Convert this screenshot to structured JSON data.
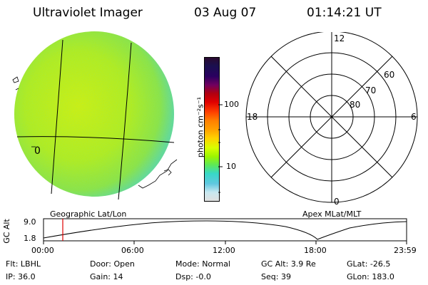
{
  "header": {
    "title": "Ultraviolet Imager",
    "date": "03 Aug 07",
    "time": "01:14:21 UT"
  },
  "geo_panel": {
    "label": "Geographic Lat/Lon",
    "lon_label": "0"
  },
  "colorbar": {
    "unit_label": "photon cm⁻²s⁻¹",
    "ticks": [
      "100",
      "10"
    ],
    "colors": [
      "#2a0a30",
      "#1a1050",
      "#2a0060",
      "#700060",
      "#b00010",
      "#e00000",
      "#ff4000",
      "#ff8000",
      "#ffa000",
      "#ffd000",
      "#d8ff00",
      "#9cf500",
      "#5ce85a",
      "#38d8c8",
      "#60c8e0",
      "#c8e8f0",
      "#e0e0e0"
    ]
  },
  "polar_panel": {
    "label": "Apex MLat/MLT",
    "mlt_labels": {
      "top": "12",
      "right": "6",
      "bottom": "0",
      "left": "18"
    },
    "lat_labels": [
      "60",
      "70",
      "80"
    ]
  },
  "altitude_plot": {
    "ylabel": "GC Alt",
    "yticks": [
      "9.0",
      "1.8"
    ],
    "xticks": [
      "00:00",
      "06:00",
      "12:00",
      "18:00",
      "23:59"
    ]
  },
  "status": {
    "row1": [
      {
        "key": "Flt:",
        "value": "LBHL"
      },
      {
        "key": "Door:",
        "value": "Open"
      },
      {
        "key": "Mode:",
        "value": "Normal"
      },
      {
        "key": "GC Alt:",
        "value": "3.9 Re"
      },
      {
        "key": "GLat:",
        "value": "-26.5"
      }
    ],
    "row2": [
      {
        "key": "IP:",
        "value": "36.0"
      },
      {
        "key": "Gain:",
        "value": "14"
      },
      {
        "key": "Dsp:",
        "value": "-0.0"
      },
      {
        "key": "Seq:",
        "value": "39"
      },
      {
        "key": "GLon:",
        "value": "183.0"
      }
    ]
  }
}
